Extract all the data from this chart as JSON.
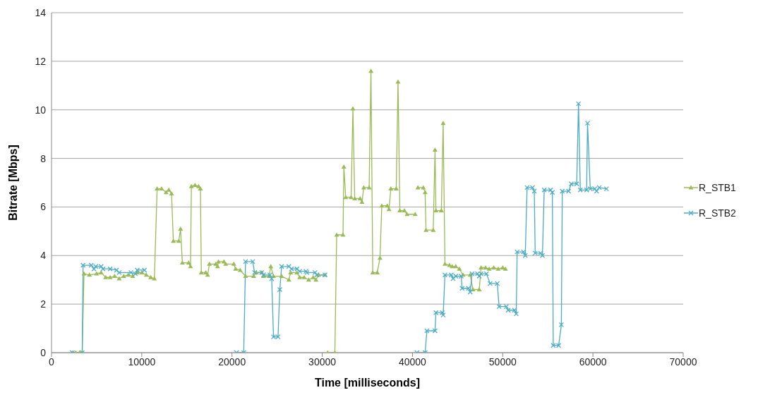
{
  "chart_data": {
    "type": "line",
    "xlabel": "Time  [milliseconds]",
    "ylabel": "Bitrate [Mbps]",
    "xlim": [
      0,
      70000
    ],
    "xticks": [
      0,
      10000,
      20000,
      30000,
      40000,
      50000,
      60000,
      70000
    ],
    "ylim": [
      0,
      14
    ],
    "yticks": [
      0,
      2,
      4,
      6,
      8,
      10,
      12,
      14
    ],
    "grid": "y",
    "legend": "right",
    "series": [
      {
        "name": "R_STB1",
        "color": "#9bbb59",
        "marker": "triangle",
        "x": [
          2300,
          2700,
          3100,
          3400,
          3600,
          4200,
          5000,
          5500,
          6000,
          6500,
          7000,
          7500,
          8000,
          8500,
          9000,
          9500,
          10000,
          10500,
          11000,
          11400,
          11700,
          12200,
          12700,
          13000,
          13300,
          13500,
          14100,
          14300,
          14500,
          15200,
          15400,
          15500,
          15900,
          16300,
          16500,
          16600,
          17100,
          17300,
          17500,
          18200,
          18400,
          18500,
          19100,
          19300,
          20200,
          20400,
          20900,
          21500,
          22400,
          22700,
          23300,
          23500,
          24100,
          24300,
          24600,
          25500,
          26300,
          26500,
          27200,
          27500,
          28000,
          28500,
          29000,
          29300,
          29600,
          30300,
          30400,
          30600,
          31400,
          31600,
          32300,
          32400,
          32600,
          33200,
          33400,
          33600,
          34200,
          34400,
          34600,
          35200,
          35400,
          35600,
          36100,
          36400,
          36600,
          37200,
          37400,
          37600,
          38200,
          38400,
          38600,
          39100,
          39400,
          40300,
          40450,
          40600,
          41200,
          41400,
          41500,
          42300,
          42500,
          42600,
          43200,
          43400,
          43600,
          44100,
          44400,
          44800,
          45200,
          45600,
          46400,
          46700,
          47400,
          47600,
          48100,
          48500,
          49000,
          49500,
          50000,
          50300
        ],
        "values": [
          0,
          0,
          0,
          0,
          3.25,
          3.2,
          3.25,
          3.3,
          3.1,
          3.1,
          3.15,
          3.05,
          3.15,
          3.2,
          3.15,
          3.3,
          3.3,
          3.2,
          3.1,
          3.05,
          6.75,
          6.75,
          6.6,
          6.7,
          6.55,
          4.6,
          4.6,
          5.1,
          3.7,
          3.7,
          3.55,
          6.85,
          6.9,
          6.85,
          6.75,
          3.3,
          3.3,
          3.2,
          3.65,
          3.65,
          3.55,
          3.75,
          3.75,
          3.65,
          3.65,
          3.45,
          3.4,
          3.15,
          3.15,
          3.3,
          3.3,
          3.15,
          3.15,
          3.55,
          3.15,
          3.15,
          3.0,
          3.3,
          3.3,
          3.1,
          3.1,
          3.0,
          3.1,
          3.0,
          3.2,
          3.2,
          null,
          0,
          0,
          4.85,
          4.85,
          7.65,
          6.4,
          6.4,
          10.05,
          6.35,
          6.35,
          6.2,
          6.8,
          6.8,
          11.6,
          3.3,
          3.3,
          3.9,
          6.05,
          6.05,
          5.9,
          6.75,
          6.75,
          11.15,
          5.85,
          5.85,
          5.7,
          5.7,
          null,
          6.8,
          6.8,
          6.6,
          5.05,
          5.05,
          8.35,
          5.85,
          5.85,
          9.45,
          3.65,
          3.6,
          3.55,
          3.55,
          3.45,
          3.2,
          3.2,
          2.6,
          2.6,
          3.5,
          3.5,
          3.45,
          3.5,
          3.45,
          3.5,
          3.45
        ]
      },
      {
        "name": "R_STB2",
        "color": "#4bacc6",
        "marker": "cross",
        "x": [
          2300,
          3400,
          3500,
          4400,
          4700,
          4900,
          5500,
          5700,
          6500,
          7200,
          7500,
          8800,
          9300,
          9500,
          10300,
          15000,
          20500,
          21300,
          21500,
          22300,
          22500,
          23300,
          23500,
          24200,
          24400,
          24600,
          25100,
          25300,
          25500,
          26300,
          26600,
          27200,
          27500,
          28200,
          28300,
          29200,
          29400,
          30300,
          35000,
          40500,
          41400,
          41600,
          42500,
          42600,
          43300,
          43400,
          43600,
          44300,
          44500,
          44800,
          45400,
          45500,
          46200,
          46400,
          46600,
          47200,
          47400,
          47600,
          48200,
          48600,
          49400,
          49600,
          50400,
          50600,
          51300,
          51500,
          51600,
          52300,
          52500,
          52700,
          53300,
          53500,
          53600,
          54200,
          54400,
          54600,
          55300,
          55500,
          55600,
          56200,
          56500,
          56600,
          57300,
          57600,
          58200,
          58400,
          58600,
          59300,
          59400,
          59700,
          60200,
          60400,
          60700,
          61500
        ],
        "values": [
          0,
          0,
          3.6,
          3.6,
          3.45,
          3.55,
          3.55,
          3.45,
          3.45,
          3.4,
          3.3,
          3.3,
          3.25,
          3.4,
          3.4,
          null,
          0,
          0,
          3.75,
          3.75,
          3.3,
          3.3,
          3.2,
          3.2,
          3.05,
          0.65,
          0.65,
          2.6,
          3.55,
          3.55,
          3.45,
          3.45,
          3.35,
          3.35,
          3.3,
          3.3,
          3.2,
          3.2,
          null,
          0,
          0,
          0.9,
          0.9,
          1.65,
          1.65,
          1.55,
          3.2,
          3.2,
          3.05,
          3.15,
          3.15,
          2.65,
          2.65,
          2.5,
          3.25,
          3.25,
          3.15,
          3.25,
          3.25,
          2.85,
          2.85,
          1.9,
          1.9,
          1.75,
          1.75,
          1.6,
          4.15,
          4.15,
          4.0,
          6.8,
          6.8,
          6.65,
          4.1,
          4.1,
          4.0,
          6.7,
          6.7,
          6.6,
          0.3,
          0.3,
          1.15,
          6.65,
          6.65,
          6.95,
          6.95,
          10.25,
          6.7,
          6.7,
          9.45,
          6.75,
          6.75,
          6.65,
          6.8,
          6.75
        ]
      }
    ]
  }
}
